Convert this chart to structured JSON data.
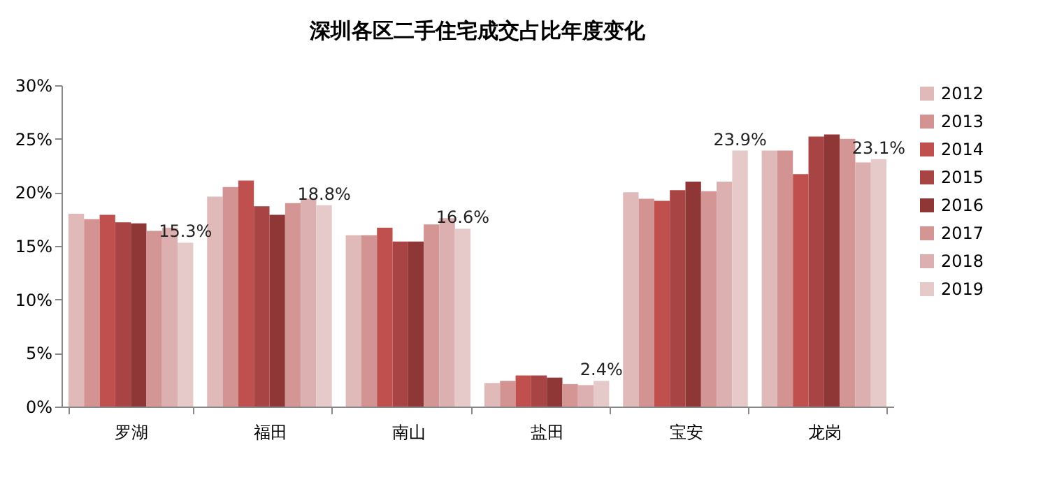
{
  "chart_data": {
    "type": "bar",
    "title": "深圳各区二手住宅成交占比年度变化",
    "categories": [
      "罗湖",
      "福田",
      "南山",
      "盐田",
      "宝安",
      "龙岗"
    ],
    "series": [
      {
        "name": "2012",
        "color": "#e0b9b9",
        "values": [
          18.0,
          19.6,
          16.0,
          2.2,
          20.0,
          23.9
        ]
      },
      {
        "name": "2013",
        "color": "#d39393",
        "values": [
          17.5,
          20.5,
          16.0,
          2.4,
          19.4,
          23.9
        ]
      },
      {
        "name": "2014",
        "color": "#c0504d",
        "values": [
          17.9,
          21.1,
          16.7,
          2.9,
          19.2,
          21.7
        ]
      },
      {
        "name": "2015",
        "color": "#a94444",
        "values": [
          17.2,
          18.7,
          15.4,
          2.9,
          20.2,
          25.2
        ]
      },
      {
        "name": "2016",
        "color": "#8e3736",
        "values": [
          17.1,
          17.9,
          15.4,
          2.7,
          21.0,
          25.4
        ]
      },
      {
        "name": "2017",
        "color": "#d49595",
        "values": [
          16.4,
          19.0,
          17.0,
          2.1,
          20.1,
          25.0
        ]
      },
      {
        "name": "2018",
        "color": "#dcb0b0",
        "values": [
          16.7,
          19.4,
          17.6,
          2.0,
          21.0,
          22.8
        ]
      },
      {
        "name": "2019",
        "color": "#e6caca",
        "values": [
          15.3,
          18.8,
          16.6,
          2.4,
          23.9,
          23.1
        ],
        "value_labels": [
          "15.3%",
          "18.8%",
          "16.6%",
          "2.4%",
          "23.9%",
          "23.1%"
        ]
      }
    ],
    "ylim": [
      0,
      30
    ],
    "yticks": [
      {
        "value": 0,
        "label": "0%"
      },
      {
        "value": 5,
        "label": "5%"
      },
      {
        "value": 10,
        "label": "10%"
      },
      {
        "value": 15,
        "label": "15%"
      },
      {
        "value": 20,
        "label": "20%"
      },
      {
        "value": 25,
        "label": "25%"
      },
      {
        "value": 30,
        "label": "30%"
      }
    ],
    "grid": false,
    "legend": "right"
  }
}
